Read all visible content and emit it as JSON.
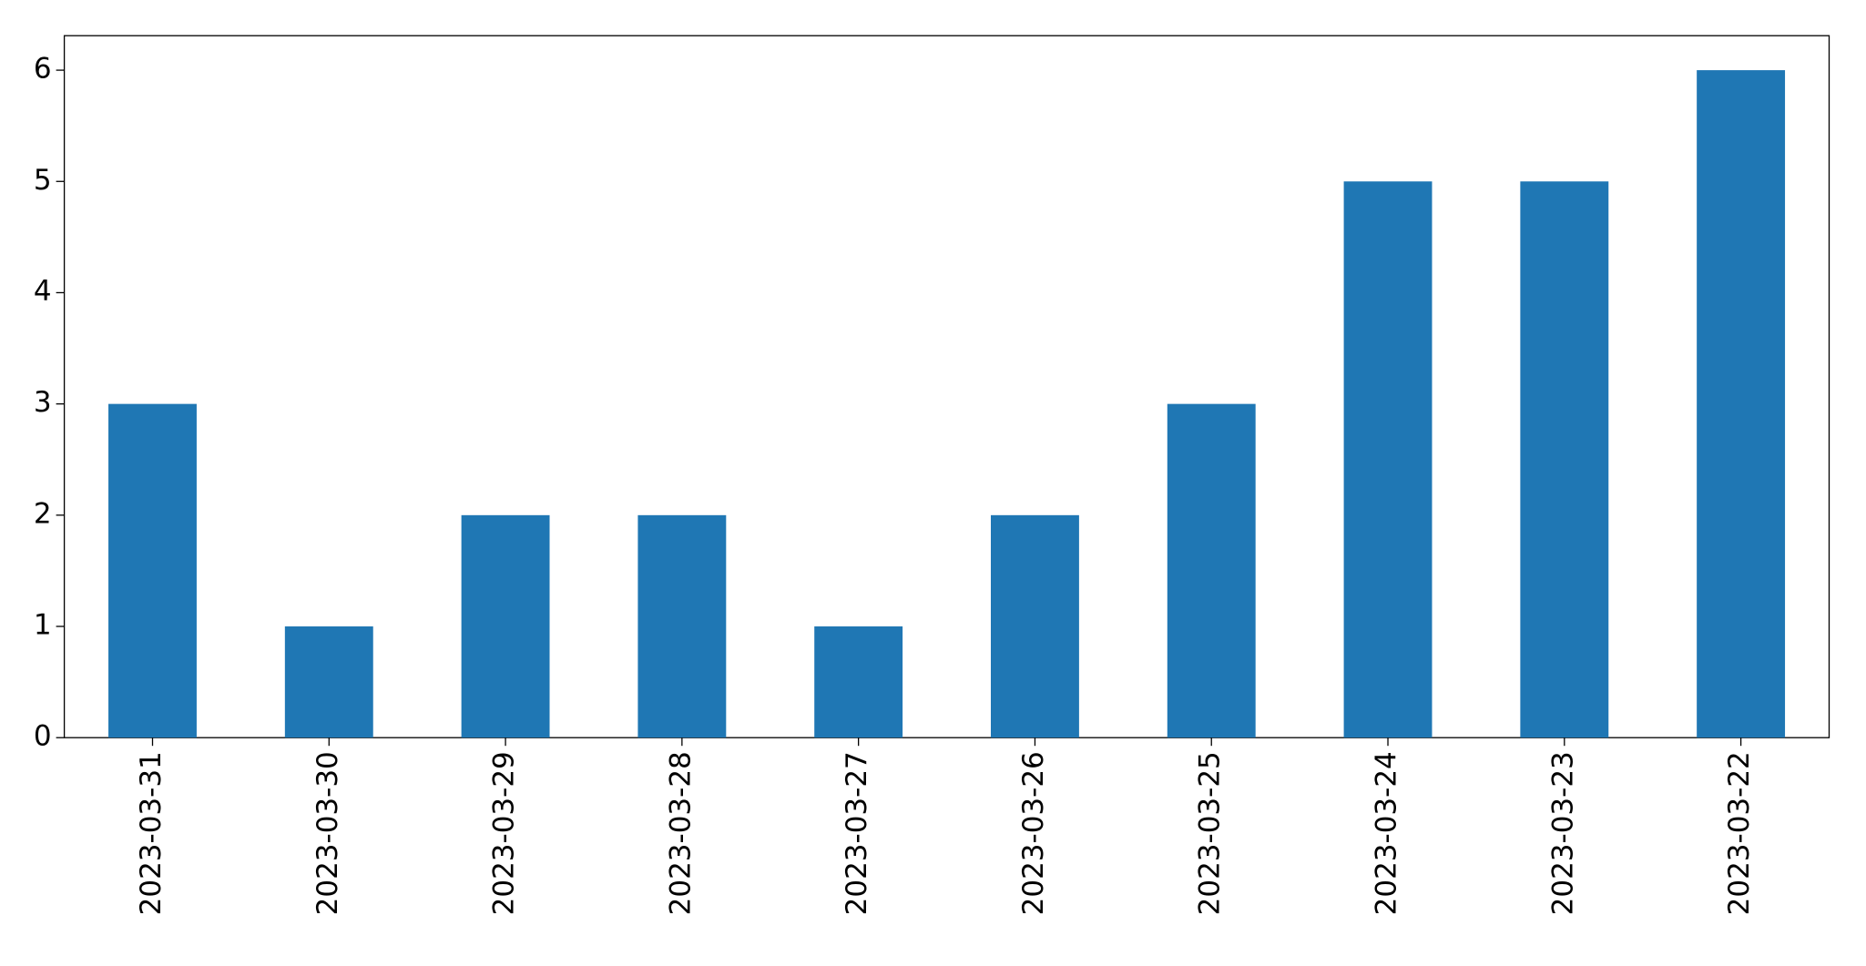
{
  "chart_data": {
    "type": "bar",
    "categories": [
      "2023-03-31",
      "2023-03-30",
      "2023-03-29",
      "2023-03-28",
      "2023-03-27",
      "2023-03-26",
      "2023-03-25",
      "2023-03-24",
      "2023-03-23",
      "2023-03-22"
    ],
    "values": [
      3,
      1,
      2,
      2,
      1,
      2,
      3,
      5,
      5,
      6
    ],
    "color": "#1f77b4",
    "ylim": [
      0,
      6.31
    ],
    "yticks": [
      0,
      1,
      2,
      3,
      4,
      5,
      6
    ],
    "grid": false
  }
}
